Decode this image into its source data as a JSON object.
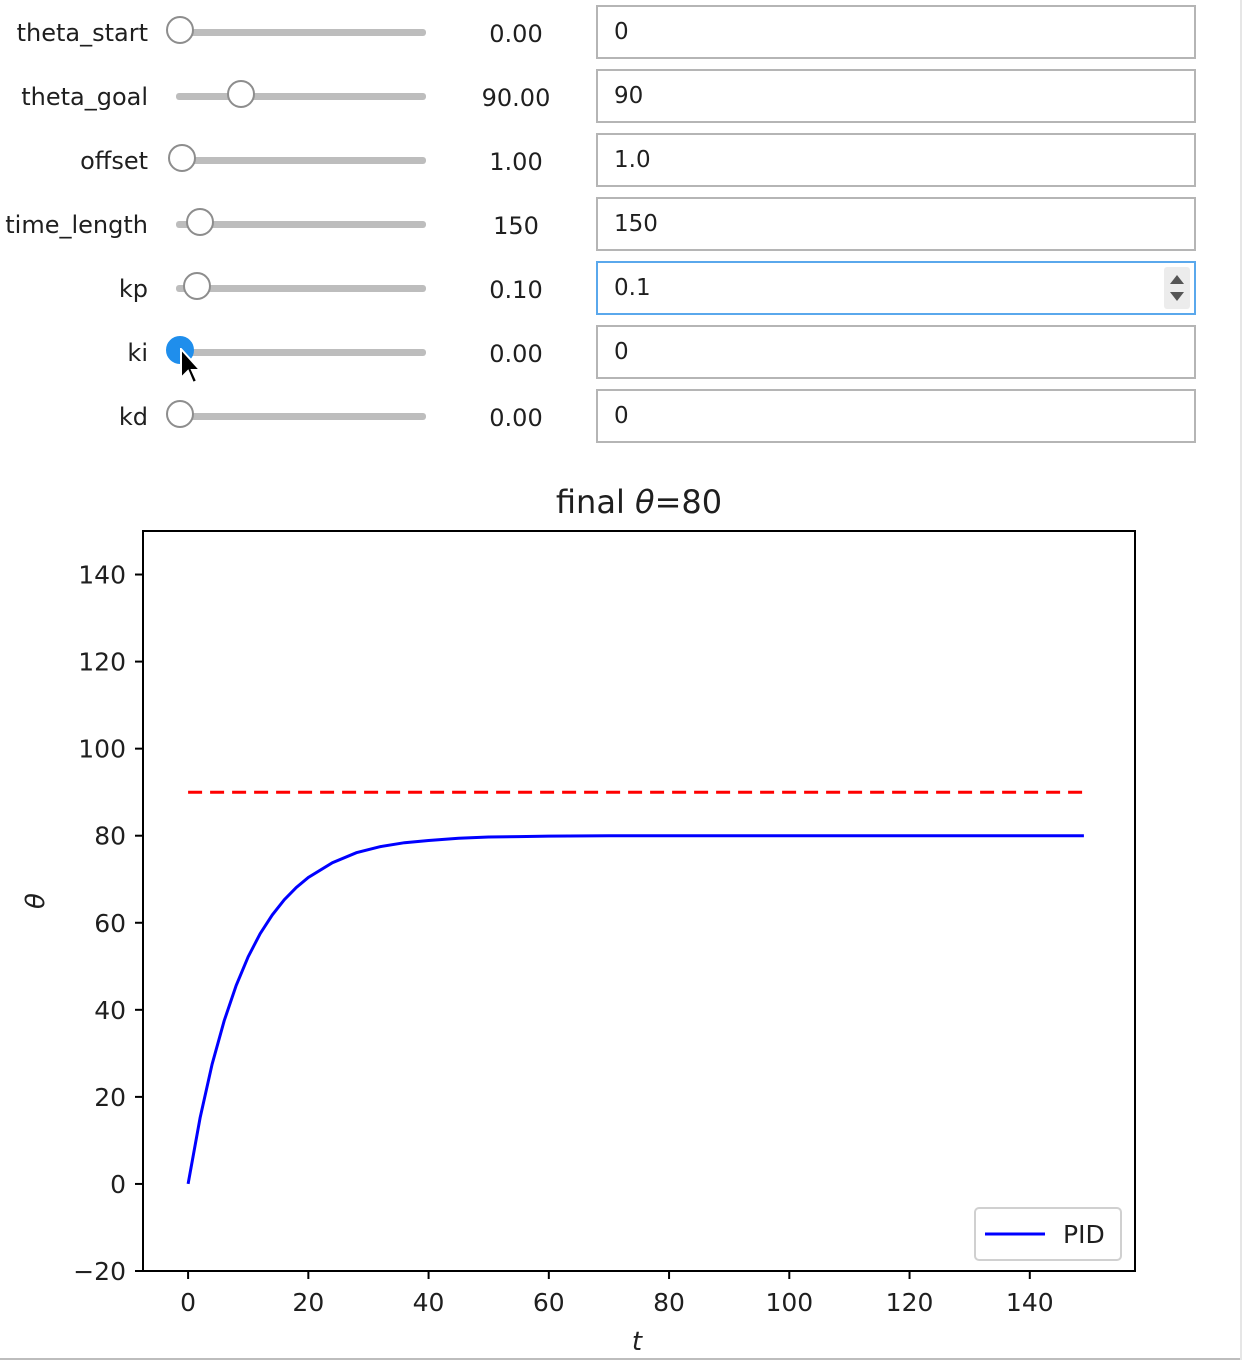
{
  "controls": [
    {
      "id": "theta_start",
      "label": "theta_start",
      "slider_fraction": 0.0,
      "readout": "0.00",
      "input": "0",
      "active": false,
      "focused": false
    },
    {
      "id": "theta_goal",
      "label": "theta_goal",
      "slider_fraction": 0.25,
      "readout": "90.00",
      "input": "90",
      "active": false,
      "focused": false
    },
    {
      "id": "offset",
      "label": "offset",
      "slider_fraction": 0.01,
      "readout": "1.00",
      "input": "1.0",
      "active": false,
      "focused": false
    },
    {
      "id": "time_length",
      "label": "time_length",
      "slider_fraction": 0.08,
      "readout": "150",
      "input": "150",
      "active": false,
      "focused": false
    },
    {
      "id": "kp",
      "label": "kp",
      "slider_fraction": 0.07,
      "readout": "0.10",
      "input": "0.1",
      "active": false,
      "focused": true
    },
    {
      "id": "ki",
      "label": "ki",
      "slider_fraction": 0.0,
      "readout": "0.00",
      "input": "0",
      "active": true,
      "focused": false
    },
    {
      "id": "kd",
      "label": "kd",
      "slider_fraction": 0.0,
      "readout": "0.00",
      "input": "0",
      "active": false,
      "focused": false
    }
  ],
  "chart_data": {
    "type": "line",
    "title_prefix": "final ",
    "title_symbol": "θ",
    "title_suffix": "=80",
    "xlabel": "t",
    "ylabel": "θ",
    "xlim": [
      -7.5,
      157.5
    ],
    "ylim": [
      -20,
      150
    ],
    "xticks": [
      0,
      20,
      40,
      60,
      80,
      100,
      120,
      140
    ],
    "yticks": [
      -20,
      0,
      20,
      40,
      60,
      80,
      100,
      120,
      140
    ],
    "x_tick_labels": [
      "0",
      "20",
      "40",
      "60",
      "80",
      "100",
      "120",
      "140"
    ],
    "y_tick_labels": [
      "−20",
      "0",
      "20",
      "40",
      "60",
      "80",
      "100",
      "120",
      "140"
    ],
    "series": [
      {
        "name": "PID",
        "color": "#0000ff",
        "style": "solid",
        "x": [
          0,
          2,
          4,
          6,
          8,
          10,
          12,
          14,
          16,
          18,
          20,
          24,
          28,
          32,
          36,
          40,
          45,
          50,
          55,
          60,
          70,
          80,
          90,
          100,
          110,
          120,
          130,
          140,
          149
        ],
        "y": [
          0,
          15.2,
          27.5,
          37.5,
          45.6,
          52.2,
          57.5,
          61.8,
          65.3,
          68.1,
          70.4,
          73.8,
          76.1,
          77.5,
          78.4,
          78.9,
          79.4,
          79.7,
          79.8,
          79.9,
          80.0,
          80.0,
          80.0,
          80.0,
          80.0,
          80.0,
          80.0,
          80.0,
          80.0
        ]
      },
      {
        "color": "#ff0000",
        "style": "dashed",
        "x": [
          0,
          149
        ],
        "y": [
          90,
          90
        ]
      }
    ],
    "legend_position": "lower right",
    "legend_label": "PID"
  }
}
